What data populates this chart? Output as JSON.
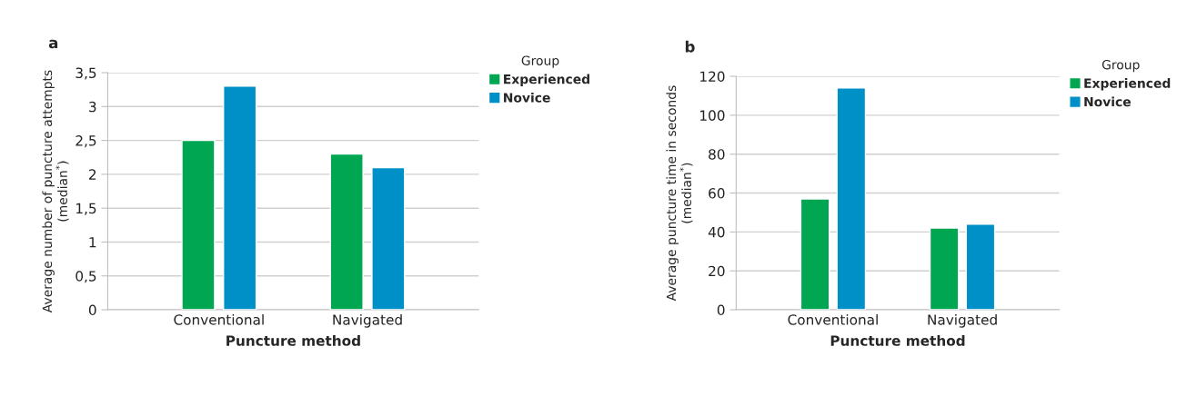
{
  "chart_data": [
    {
      "type": "bar",
      "title": "a",
      "categories": [
        "Conventional",
        "Navigated"
      ],
      "xlabel": "Puncture method",
      "ylabel": "Average number of puncture attempts\n(median$^{*}$)",
      "legend_title": "Group",
      "series": [
        {
          "name": "Experienced",
          "color": "#00a651",
          "values": [
            2.5,
            2.3
          ]
        },
        {
          "name": "Novice",
          "color": "#0090c8",
          "values": [
            3.3,
            2.1
          ]
        }
      ],
      "ylim": [
        0,
        3.5
      ],
      "yticks": [
        0,
        {
          "value": 0.5,
          "label": "0,5"
        },
        1,
        {
          "value": 1.5,
          "label": "1,5"
        },
        2,
        {
          "value": 2.5,
          "label": "2,5"
        },
        3,
        {
          "value": 3.5,
          "label": "3,5"
        }
      ],
      "grid": "y",
      "legend": "top right"
    },
    {
      "type": "bar",
      "title": "b",
      "categories": [
        "Conventional",
        "Navigated"
      ],
      "xlabel": "Puncture method",
      "ylabel": "Average puncture time in seconds\n(median$^{*}$)",
      "legend_title": "Group",
      "series": [
        {
          "name": "Experienced",
          "color": "#00a651",
          "values": [
            57,
            42
          ]
        },
        {
          "name": "Novice",
          "color": "#0090c8",
          "values": [
            114,
            44
          ]
        }
      ],
      "ylim": [
        0,
        120
      ],
      "yticks": [
        0,
        20,
        40,
        60,
        80,
        100,
        120
      ],
      "grid": "y",
      "legend": "top right"
    }
  ]
}
